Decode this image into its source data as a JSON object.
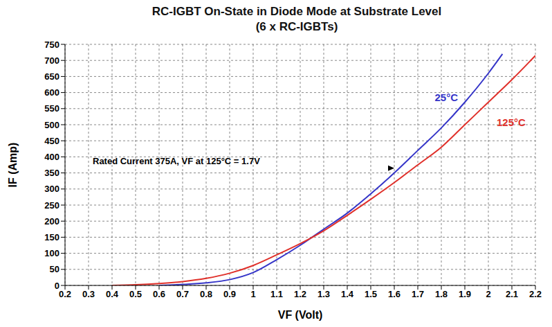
{
  "chart_data": {
    "type": "line",
    "title": [
      "RC-IGBT On-State in Diode Mode at Substrate Level",
      "(6 x RC-IGBTs)"
    ],
    "x_label": "VF (Volt)",
    "y_label": "IF (Amp)",
    "xlim": [
      0.2,
      2.2
    ],
    "xticks": [
      0.2,
      0.3,
      0.4,
      0.5,
      0.6,
      0.7,
      0.8,
      0.9,
      1,
      1.1,
      1.2,
      1.3,
      1.4,
      1.5,
      1.6,
      1.7,
      1.8,
      1.9,
      2,
      2.1,
      2.2
    ],
    "ylim": [
      0,
      750
    ],
    "yticks": [
      0,
      50,
      100,
      150,
      200,
      250,
      300,
      350,
      400,
      450,
      500,
      550,
      600,
      650,
      700,
      750
    ],
    "grid": true,
    "series": [
      {
        "name": "25°C",
        "color": "#3535c8",
        "x": [
          0.6,
          0.7,
          0.8,
          0.9,
          1.0,
          1.1,
          1.2,
          1.3,
          1.4,
          1.5,
          1.6,
          1.7,
          1.8,
          1.9,
          2.0,
          2.06
        ],
        "values": [
          0,
          3,
          8,
          18,
          40,
          80,
          125,
          175,
          225,
          285,
          350,
          420,
          490,
          570,
          660,
          720
        ]
      },
      {
        "name": "125°C",
        "color": "#e0302a",
        "x": [
          0.4,
          0.5,
          0.6,
          0.7,
          0.8,
          0.9,
          1.0,
          1.1,
          1.2,
          1.3,
          1.4,
          1.5,
          1.6,
          1.7,
          1.8,
          1.9,
          2.0,
          2.1,
          2.2
        ],
        "values": [
          0,
          2,
          6,
          12,
          22,
          38,
          62,
          95,
          130,
          170,
          218,
          268,
          320,
          375,
          430,
          500,
          570,
          640,
          715
        ]
      }
    ],
    "annotation": {
      "text": "Rated Current 375A, VF at 125°C = 1.7V",
      "x": 1.6,
      "y": 365
    }
  }
}
